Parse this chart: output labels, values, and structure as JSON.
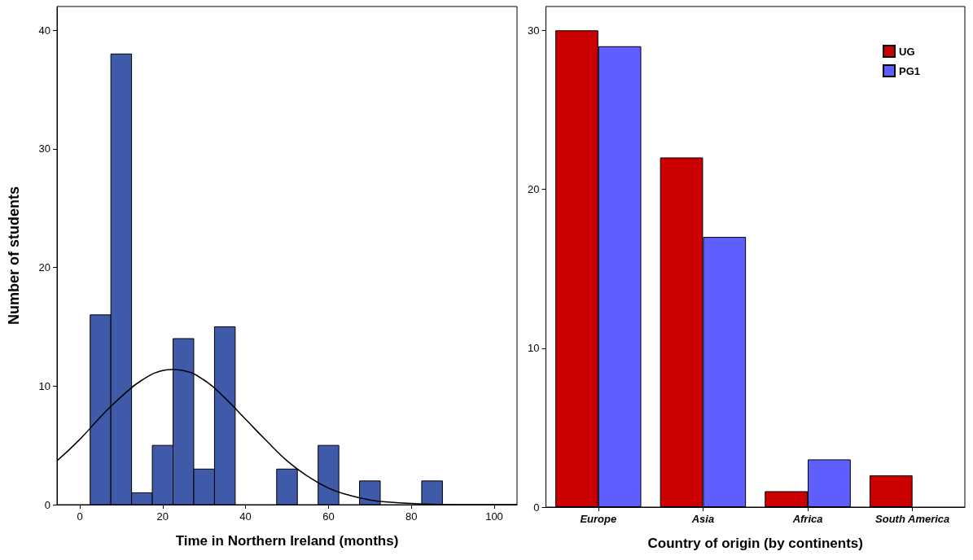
{
  "chart_data": [
    {
      "type": "histogram",
      "xlabel": "Time in Northern Ireland (months)",
      "ylabel": "Number of students",
      "color": "#3f5aa8",
      "bins": [
        2.5,
        7.5,
        12.5,
        17.5,
        22.5,
        27.5,
        32.5,
        37.5,
        42.5,
        47.5,
        52.5,
        57.5,
        62.5,
        67.5,
        72.5,
        77.5,
        82.5,
        87.5
      ],
      "values": [
        16,
        38,
        1,
        5,
        14,
        3,
        15,
        0,
        0,
        3,
        0,
        5,
        0,
        2,
        0,
        0,
        2
      ],
      "series": [
        {
          "type": "line",
          "color": "#000000",
          "x": [
            -5.5,
            0,
            5,
            10,
            15,
            20,
            22.3,
            25,
            30,
            35,
            40,
            45,
            50,
            55,
            60,
            65,
            70,
            75,
            80,
            90,
            100,
            105.5
          ],
          "values": [
            3.7,
            5.5,
            7.4,
            9.1,
            10.5,
            11.3,
            11.4,
            11.3,
            10.5,
            9.0,
            7.2,
            5.4,
            3.7,
            2.4,
            1.4,
            0.8,
            0.4,
            0.2,
            0.1,
            0,
            0,
            0
          ]
        }
      ],
      "marker": "none",
      "xlim": [
        -5.5,
        105.5
      ],
      "xticks": [
        0,
        20,
        40,
        60,
        80,
        100
      ],
      "ylim": [
        0,
        42
      ],
      "yticks": [
        0,
        10,
        20,
        30,
        40
      ],
      "grid": false,
      "legend": false
    },
    {
      "type": "bar",
      "xlabel": "Country of origin (by continents)",
      "categories": [
        "Europe",
        "Asia",
        "Africa",
        "South America"
      ],
      "series": [
        {
          "name": "UG",
          "color": "#cc0000",
          "values": [
            30,
            22,
            1,
            2
          ]
        },
        {
          "name": "PG1",
          "color": "#5f5fff",
          "values": [
            29,
            17,
            3,
            null
          ]
        }
      ],
      "ylim": [
        0,
        31.5
      ],
      "yticks": [
        0,
        10,
        20,
        30
      ],
      "grid": false,
      "legend": "top right"
    }
  ]
}
